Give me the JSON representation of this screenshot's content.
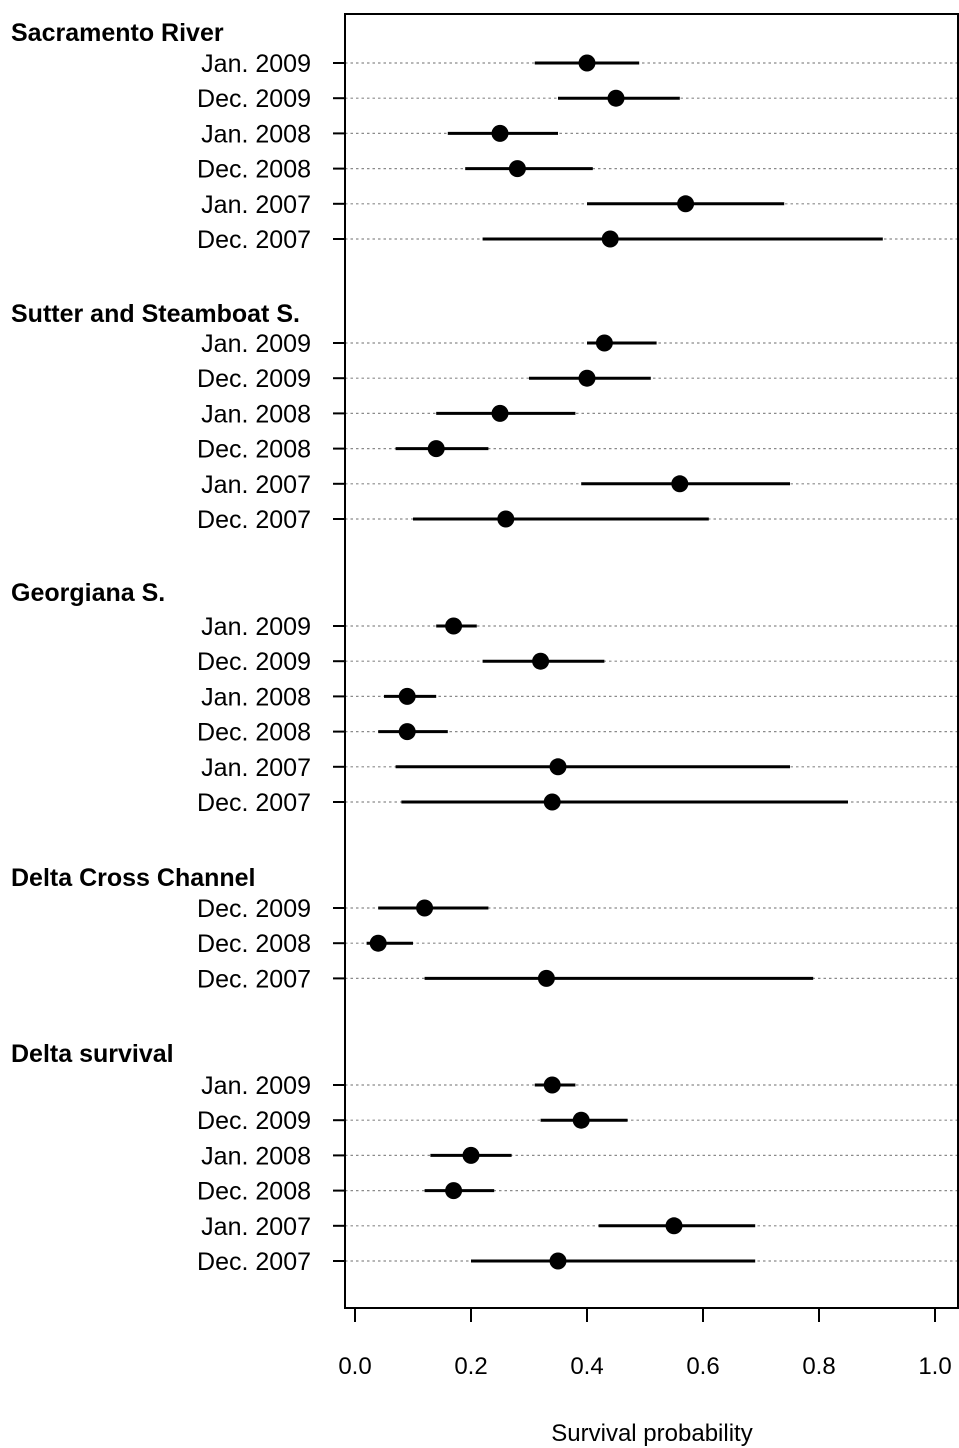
{
  "chart_data": {
    "type": "scatter",
    "xlabel": "Survival probability",
    "xlim": [
      -0.02,
      1.04
    ],
    "x_ticks": [
      0.0,
      0.2,
      0.4,
      0.6,
      0.8,
      1.0
    ],
    "x_tick_labels": [
      "0.0",
      "0.2",
      "0.4",
      "0.6",
      "0.8",
      "1.0"
    ],
    "grid": "dotted horizontal guide line per row",
    "groups": [
      {
        "title": "Sacramento River",
        "rows": [
          {
            "label": "Jan. 2009",
            "estimate": 0.4,
            "lower": 0.31,
            "upper": 0.49
          },
          {
            "label": "Dec. 2009",
            "estimate": 0.45,
            "lower": 0.35,
            "upper": 0.56
          },
          {
            "label": "Jan. 2008",
            "estimate": 0.25,
            "lower": 0.16,
            "upper": 0.35
          },
          {
            "label": "Dec. 2008",
            "estimate": 0.28,
            "lower": 0.19,
            "upper": 0.41
          },
          {
            "label": "Jan. 2007",
            "estimate": 0.57,
            "lower": 0.4,
            "upper": 0.74
          },
          {
            "label": "Dec. 2007",
            "estimate": 0.44,
            "lower": 0.22,
            "upper": 0.91
          }
        ]
      },
      {
        "title": "Sutter and Steamboat S.",
        "rows": [
          {
            "label": "Jan. 2009",
            "estimate": 0.43,
            "lower": 0.4,
            "upper": 0.52
          },
          {
            "label": "Dec. 2009",
            "estimate": 0.4,
            "lower": 0.3,
            "upper": 0.51
          },
          {
            "label": "Jan. 2008",
            "estimate": 0.25,
            "lower": 0.14,
            "upper": 0.38
          },
          {
            "label": "Dec. 2008",
            "estimate": 0.14,
            "lower": 0.07,
            "upper": 0.23
          },
          {
            "label": "Jan. 2007",
            "estimate": 0.56,
            "lower": 0.39,
            "upper": 0.75
          },
          {
            "label": "Dec. 2007",
            "estimate": 0.26,
            "lower": 0.1,
            "upper": 0.61
          }
        ]
      },
      {
        "title": "Georgiana S.",
        "rows": [
          {
            "label": "Jan. 2009",
            "estimate": 0.17,
            "lower": 0.14,
            "upper": 0.21
          },
          {
            "label": "Dec. 2009",
            "estimate": 0.32,
            "lower": 0.22,
            "upper": 0.43
          },
          {
            "label": "Jan. 2008",
            "estimate": 0.09,
            "lower": 0.05,
            "upper": 0.14
          },
          {
            "label": "Dec. 2008",
            "estimate": 0.09,
            "lower": 0.04,
            "upper": 0.16
          },
          {
            "label": "Jan. 2007",
            "estimate": 0.35,
            "lower": 0.07,
            "upper": 0.75
          },
          {
            "label": "Dec. 2007",
            "estimate": 0.34,
            "lower": 0.08,
            "upper": 0.85
          }
        ]
      },
      {
        "title": "Delta Cross Channel",
        "rows": [
          {
            "label": "Dec. 2009",
            "estimate": 0.12,
            "lower": 0.04,
            "upper": 0.23
          },
          {
            "label": "Dec. 2008",
            "estimate": 0.04,
            "lower": 0.02,
            "upper": 0.1
          },
          {
            "label": "Dec. 2007",
            "estimate": 0.33,
            "lower": 0.12,
            "upper": 0.79
          }
        ]
      },
      {
        "title": "Delta survival",
        "rows": [
          {
            "label": "Jan. 2009",
            "estimate": 0.34,
            "lower": 0.31,
            "upper": 0.38
          },
          {
            "label": "Dec. 2009",
            "estimate": 0.39,
            "lower": 0.32,
            "upper": 0.47
          },
          {
            "label": "Jan. 2008",
            "estimate": 0.2,
            "lower": 0.13,
            "upper": 0.27
          },
          {
            "label": "Dec. 2008",
            "estimate": 0.17,
            "lower": 0.12,
            "upper": 0.24
          },
          {
            "label": "Jan. 2007",
            "estimate": 0.55,
            "lower": 0.42,
            "upper": 0.69
          },
          {
            "label": "Dec. 2007",
            "estimate": 0.35,
            "lower": 0.2,
            "upper": 0.69
          }
        ]
      }
    ]
  }
}
